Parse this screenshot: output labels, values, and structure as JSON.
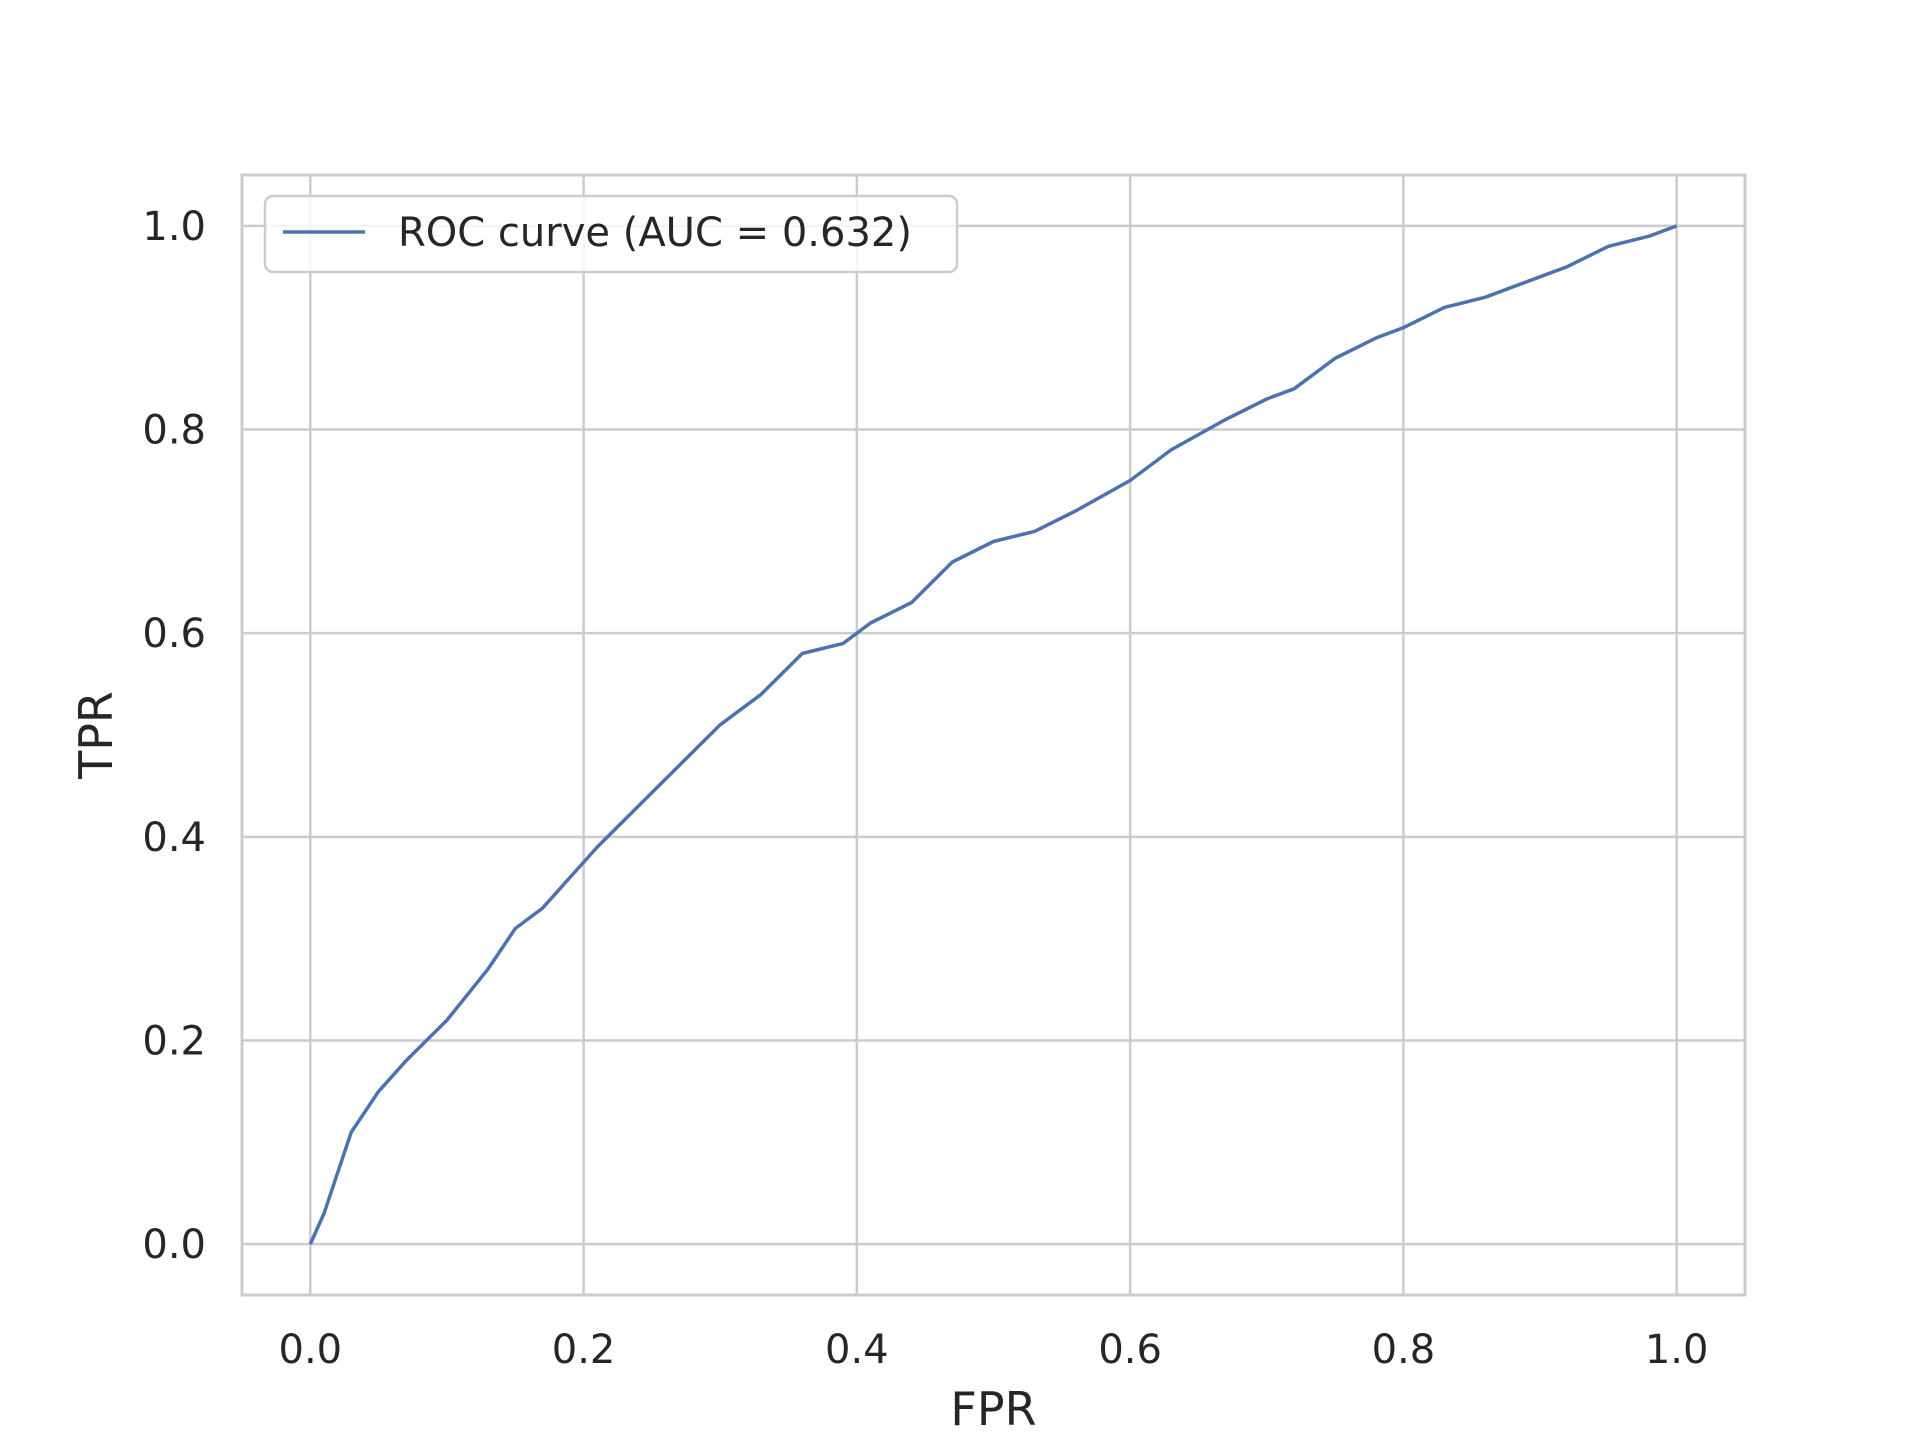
{
  "chart_data": {
    "type": "line",
    "title": "",
    "xlabel": "FPR",
    "ylabel": "TPR",
    "xlim": [
      -0.05,
      1.05
    ],
    "ylim": [
      -0.05,
      1.05
    ],
    "xticks": [
      "0.0",
      "0.2",
      "0.4",
      "0.6",
      "0.8",
      "1.0"
    ],
    "yticks": [
      "0.0",
      "0.2",
      "0.4",
      "0.6",
      "0.8",
      "1.0"
    ],
    "grid": true,
    "legend_position": "upper-left",
    "colors": {
      "series": "#4c72b0",
      "grid": "#cccccc",
      "text": "#262626"
    },
    "series": [
      {
        "name": "ROC curve (AUC = 0.632)",
        "x": [
          0.0,
          0.01,
          0.02,
          0.03,
          0.04,
          0.05,
          0.07,
          0.1,
          0.13,
          0.15,
          0.17,
          0.19,
          0.21,
          0.24,
          0.27,
          0.3,
          0.33,
          0.36,
          0.39,
          0.41,
          0.44,
          0.47,
          0.5,
          0.53,
          0.56,
          0.6,
          0.63,
          0.67,
          0.7,
          0.72,
          0.75,
          0.78,
          0.8,
          0.83,
          0.86,
          0.9,
          0.92,
          0.95,
          0.98,
          1.0
        ],
        "y": [
          0.0,
          0.03,
          0.07,
          0.11,
          0.13,
          0.15,
          0.18,
          0.22,
          0.27,
          0.31,
          0.33,
          0.36,
          0.39,
          0.43,
          0.47,
          0.51,
          0.54,
          0.58,
          0.59,
          0.61,
          0.63,
          0.67,
          0.69,
          0.7,
          0.72,
          0.75,
          0.78,
          0.81,
          0.83,
          0.84,
          0.87,
          0.89,
          0.9,
          0.92,
          0.93,
          0.95,
          0.96,
          0.98,
          0.99,
          1.0
        ]
      }
    ]
  }
}
